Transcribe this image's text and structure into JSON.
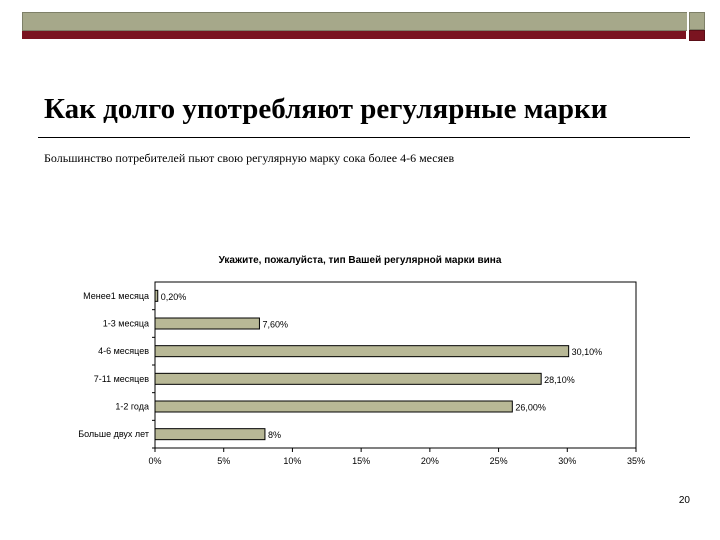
{
  "slide": {
    "title": "Как долго употребляют регулярные марки",
    "subtitle": "Большинство потребителей пьют свою регулярную марку сока более 4-6 месяев",
    "page_number": "20"
  },
  "colors": {
    "band": "#a6a88a",
    "accent_line": "#7a1420",
    "bar_fill": "#b8b896",
    "bar_stroke": "#000000"
  },
  "chart_data": {
    "type": "bar",
    "orientation": "horizontal",
    "title": "Укажите, пожалуйста, тип Вашей регулярной марки вина",
    "categories": [
      "Менее1 месяца",
      "1-3 месяца",
      "4-6 месяцев",
      "7-11 месяцев",
      "1-2 года",
      "Больше двух лет"
    ],
    "values": [
      0.2,
      7.6,
      30.1,
      28.1,
      26.0,
      8.0
    ],
    "data_labels": [
      "0,20%",
      "7,60%",
      "30,10%",
      "28,10%",
      "26,00%",
      "8%"
    ],
    "xlim": [
      0,
      35
    ],
    "x_ticks": [
      0,
      5,
      10,
      15,
      20,
      25,
      30,
      35
    ],
    "x_tick_labels": [
      "0%",
      "5%",
      "10%",
      "15%",
      "20%",
      "25%",
      "30%",
      "35%"
    ],
    "xlabel": "",
    "ylabel": "",
    "grid": false,
    "legend": "none"
  }
}
